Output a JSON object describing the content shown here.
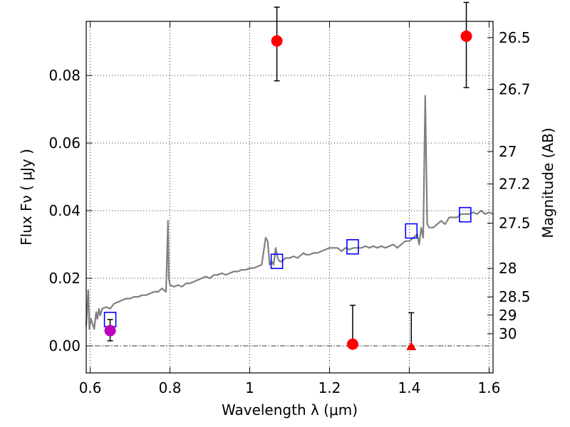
{
  "chart_data": {
    "type": "scatter",
    "xlabel": "Wavelength  λ (μm)",
    "ylabel": "Flux  Fν  ( μJy )",
    "y2label": "Magnitude (AB)",
    "xlim": [
      0.59,
      1.61
    ],
    "ylim": [
      -0.008,
      0.096
    ],
    "grid": true,
    "x_ticks": [
      {
        "value": 0.6,
        "label": "0.6"
      },
      {
        "value": 0.8,
        "label": "0.8"
      },
      {
        "value": 1.0,
        "label": "1"
      },
      {
        "value": 1.2,
        "label": "1.2"
      },
      {
        "value": 1.4,
        "label": "1.4"
      },
      {
        "value": 1.6,
        "label": "1.6"
      }
    ],
    "y_ticks": [
      {
        "value": 0.0,
        "label": "0.00"
      },
      {
        "value": 0.02,
        "label": "0.02"
      },
      {
        "value": 0.04,
        "label": "0.04"
      },
      {
        "value": 0.06,
        "label": "0.06"
      },
      {
        "value": 0.08,
        "label": "0.08"
      }
    ],
    "y2_ticks": [
      {
        "flux": 0.0912,
        "label": "26.5"
      },
      {
        "flux": 0.0759,
        "label": "26.7"
      },
      {
        "flux": 0.0575,
        "label": "27"
      },
      {
        "flux": 0.0479,
        "label": "27.2"
      },
      {
        "flux": 0.0363,
        "label": "27.5"
      },
      {
        "flux": 0.0229,
        "label": "28"
      },
      {
        "flux": 0.0145,
        "label": "28.5"
      },
      {
        "flux": 0.0091,
        "label": "29"
      },
      {
        "flux": 0.0036,
        "label": "30"
      }
    ],
    "zero_line": 0.0,
    "spectrum": {
      "color": "#808080",
      "x": [
        0.59,
        0.595,
        0.598,
        0.602,
        0.61,
        0.615,
        0.618,
        0.622,
        0.625,
        0.63,
        0.64,
        0.65,
        0.66,
        0.67,
        0.68,
        0.69,
        0.7,
        0.71,
        0.72,
        0.73,
        0.74,
        0.75,
        0.76,
        0.77,
        0.78,
        0.79,
        0.795,
        0.797,
        0.8,
        0.81,
        0.82,
        0.83,
        0.84,
        0.85,
        0.86,
        0.87,
        0.88,
        0.89,
        0.9,
        0.91,
        0.92,
        0.93,
        0.94,
        0.95,
        0.96,
        0.97,
        0.98,
        0.99,
        1.0,
        1.01,
        1.02,
        1.03,
        1.04,
        1.045,
        1.05,
        1.055,
        1.06,
        1.065,
        1.07,
        1.075,
        1.08,
        1.09,
        1.1,
        1.11,
        1.12,
        1.13,
        1.135,
        1.14,
        1.15,
        1.16,
        1.17,
        1.18,
        1.19,
        1.2,
        1.21,
        1.22,
        1.23,
        1.24,
        1.25,
        1.26,
        1.27,
        1.28,
        1.29,
        1.3,
        1.31,
        1.32,
        1.33,
        1.34,
        1.35,
        1.36,
        1.37,
        1.38,
        1.39,
        1.4,
        1.41,
        1.42,
        1.425,
        1.43,
        1.435,
        1.44,
        1.445,
        1.45,
        1.46,
        1.47,
        1.48,
        1.49,
        1.5,
        1.51,
        1.52,
        1.53,
        1.54,
        1.55,
        1.56,
        1.57,
        1.58,
        1.59,
        1.6,
        1.61
      ],
      "y": [
        0.006,
        0.0165,
        0.005,
        0.008,
        0.005,
        0.01,
        0.008,
        0.011,
        0.009,
        0.011,
        0.0115,
        0.011,
        0.0125,
        0.013,
        0.0135,
        0.014,
        0.014,
        0.0145,
        0.0145,
        0.015,
        0.015,
        0.0155,
        0.016,
        0.016,
        0.017,
        0.016,
        0.037,
        0.02,
        0.018,
        0.0175,
        0.018,
        0.0175,
        0.0185,
        0.0185,
        0.019,
        0.0195,
        0.02,
        0.0205,
        0.02,
        0.021,
        0.021,
        0.0215,
        0.021,
        0.0215,
        0.022,
        0.022,
        0.0225,
        0.0225,
        0.023,
        0.023,
        0.0235,
        0.024,
        0.032,
        0.031,
        0.024,
        0.025,
        0.024,
        0.029,
        0.026,
        0.025,
        0.025,
        0.026,
        0.026,
        0.0265,
        0.026,
        0.027,
        0.0275,
        0.027,
        0.027,
        0.0275,
        0.0275,
        0.028,
        0.0285,
        0.029,
        0.029,
        0.029,
        0.028,
        0.029,
        0.0285,
        0.029,
        0.029,
        0.029,
        0.0295,
        0.029,
        0.0295,
        0.029,
        0.0295,
        0.029,
        0.0295,
        0.03,
        0.029,
        0.03,
        0.031,
        0.031,
        0.032,
        0.033,
        0.03,
        0.035,
        0.032,
        0.074,
        0.036,
        0.035,
        0.035,
        0.036,
        0.037,
        0.036,
        0.038,
        0.038,
        0.038,
        0.039,
        0.039,
        0.039,
        0.0395,
        0.039,
        0.04,
        0.039,
        0.0395,
        0.039
      ]
    },
    "series": [
      {
        "marker": "open-square",
        "color": "#0000ff",
        "points": [
          {
            "x": 0.65,
            "y": 0.0078
          },
          {
            "x": 1.068,
            "y": 0.025
          },
          {
            "x": 1.258,
            "y": 0.0293
          },
          {
            "x": 1.405,
            "y": 0.034
          },
          {
            "x": 1.54,
            "y": 0.0388
          }
        ]
      },
      {
        "marker": "circle",
        "color": "#ff0000",
        "points": [
          {
            "x": 1.068,
            "y": 0.0902,
            "err_low": 0.0118,
            "err_high": 0.01
          },
          {
            "x": 1.258,
            "y": 0.0005,
            "err_low": 0.0,
            "err_high": 0.0115
          },
          {
            "x": 1.543,
            "y": 0.0916,
            "err_low": 0.0152,
            "err_high": 0.01
          }
        ]
      },
      {
        "marker": "triangle",
        "color": "#ff0000",
        "points": [
          {
            "x": 1.405,
            "y": -0.0002,
            "err_low": 0.0,
            "err_high": 0.01
          }
        ]
      },
      {
        "marker": "circle",
        "color": "#bf00bf",
        "points": [
          {
            "x": 0.65,
            "y": 0.0045,
            "err_low": 0.003,
            "err_high": 0.0033
          }
        ]
      }
    ]
  }
}
